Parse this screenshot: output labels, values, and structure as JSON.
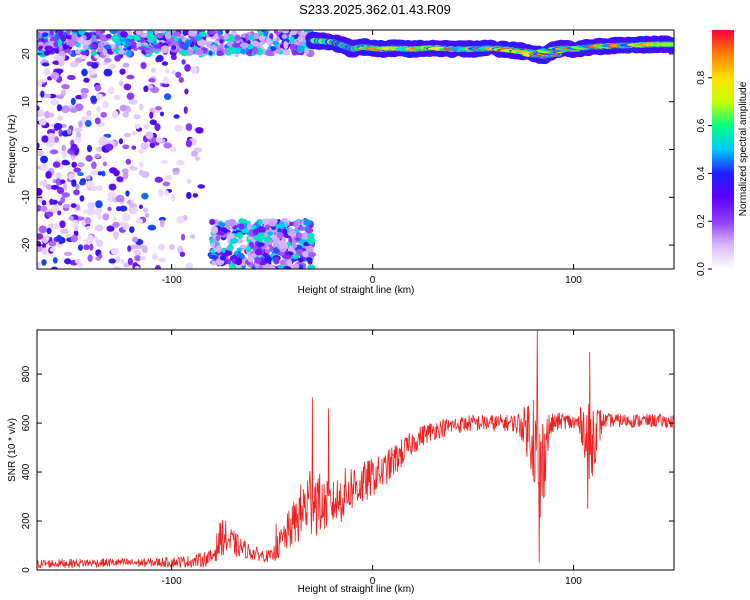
{
  "figure_title": "S233.2025.362.01.43.R09",
  "colorbar": {
    "label": "Normalized spectral amplitude",
    "ticks": [
      0.0,
      0.2,
      0.4,
      0.6,
      0.8
    ],
    "tick_labels": [
      "0.0",
      "0.2",
      "0.4",
      "0.6",
      "0.8"
    ],
    "range": [
      0,
      1
    ],
    "colormap": [
      "#ffffff",
      "#d9b8ff",
      "#8f3cff",
      "#5a00ff",
      "#2020ff",
      "#00c8ff",
      "#00ff80",
      "#c8ff00",
      "#ffe000",
      "#ff8000",
      "#ff0040"
    ]
  },
  "chart_data": [
    {
      "type": "heatmap",
      "title": "",
      "xlabel": "Height of straight line (km)",
      "ylabel": "Frequency (Hz)",
      "xlim": [
        -167,
        150
      ],
      "ylim": [
        -25,
        25
      ],
      "xticks": [
        -100,
        0,
        100
      ],
      "xtick_labels": [
        "-100",
        "0",
        "100"
      ],
      "yticks": [
        -20,
        -10,
        0,
        10,
        20
      ],
      "ytick_labels": [
        "-20",
        "-10",
        "0",
        "10",
        "20"
      ],
      "features": [
        {
          "name": "noise-region",
          "x": [
            -167,
            -85
          ],
          "y": [
            -25,
            25
          ],
          "amplitude": [
            0.05,
            0.3
          ]
        },
        {
          "name": "upper-aliased-band",
          "x": [
            -167,
            -30
          ],
          "y": [
            20,
            25
          ],
          "amplitude": [
            0.1,
            0.5
          ]
        },
        {
          "name": "lower-aliased-band",
          "x": [
            -80,
            -30
          ],
          "y": [
            -25,
            -15
          ],
          "amplitude": [
            0.1,
            0.5
          ]
        },
        {
          "name": "signal-track",
          "x": [
            -20,
            150
          ],
          "track_x": [
            -30,
            -20,
            -15,
            -10,
            -5,
            0,
            5,
            10,
            20,
            30,
            40,
            50,
            60,
            70,
            80,
            85,
            90,
            95,
            100,
            110,
            120,
            130,
            140,
            150
          ],
          "track_y": [
            22.8,
            22.5,
            21.8,
            21.0,
            21.5,
            21.2,
            21.0,
            21.2,
            21.0,
            21.3,
            21.0,
            21.0,
            21.2,
            20.8,
            20.2,
            19.5,
            20.8,
            21.2,
            21.0,
            21.5,
            21.7,
            21.8,
            22.0,
            22.0
          ],
          "amplitude": [
            0.4,
            1.0
          ]
        }
      ]
    },
    {
      "type": "line",
      "title": "",
      "xlabel": "Height of straight line (km)",
      "ylabel": "SNR (10 * v/v)",
      "xlim": [
        -167,
        150
      ],
      "ylim": [
        0,
        980
      ],
      "xticks": [
        -100,
        0,
        100
      ],
      "xtick_labels": [
        "-100",
        "0",
        "100"
      ],
      "yticks": [
        0,
        200,
        400,
        600,
        800
      ],
      "ytick_labels": [
        "0",
        "200",
        "400",
        "600",
        "800"
      ],
      "series": [
        {
          "color": "#ee2222",
          "x": [
            -167,
            -150,
            -130,
            -110,
            -90,
            -80,
            -75,
            -70,
            -65,
            -60,
            -55,
            -50,
            -45,
            -40,
            -35,
            -30,
            -25,
            -20,
            -15,
            -10,
            -5,
            0,
            5,
            10,
            15,
            20,
            25,
            30,
            40,
            50,
            60,
            70,
            75,
            80,
            82,
            84,
            86,
            88,
            90,
            95,
            100,
            105,
            108,
            110,
            115,
            120,
            130,
            140,
            150
          ],
          "y": [
            25,
            28,
            30,
            30,
            35,
            50,
            140,
            110,
            90,
            70,
            60,
            55,
            120,
            180,
            240,
            300,
            260,
            270,
            300,
            340,
            350,
            380,
            400,
            440,
            480,
            520,
            550,
            570,
            590,
            600,
            600,
            600,
            590,
            560,
            420,
            380,
            520,
            580,
            600,
            610,
            600,
            590,
            480,
            560,
            610,
            610,
            610,
            610,
            605
          ],
          "noise": [
            18,
            18,
            18,
            18,
            25,
            35,
            80,
            60,
            40,
            30,
            25,
            25,
            70,
            90,
            130,
            170,
            110,
            90,
            110,
            100,
            90,
            80,
            70,
            70,
            60,
            50,
            45,
            40,
            35,
            35,
            35,
            35,
            70,
            200,
            280,
            260,
            160,
            60,
            40,
            35,
            35,
            90,
            200,
            150,
            30,
            28,
            28,
            28,
            28
          ],
          "peaks": [
            [
              -30,
              705
            ],
            [
              82,
              980
            ],
            [
              83,
              30
            ],
            [
              108,
              890
            ],
            [
              107,
              250
            ],
            [
              -22,
              660
            ],
            [
              -48,
              190
            ]
          ]
        }
      ]
    }
  ]
}
